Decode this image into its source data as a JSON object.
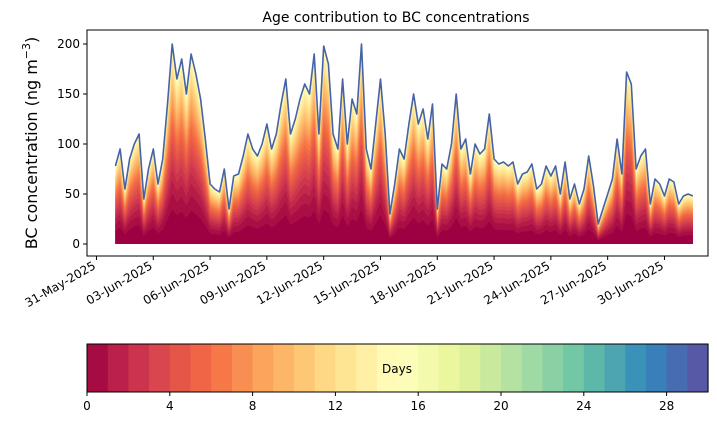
{
  "chart_data": {
    "type": "area",
    "title": "Age contribution to BC concentrations",
    "xlabel": "",
    "ylabel": "BC concentration (ng m",
    "ylabel_sup": "−3",
    "ylabel_close": ")",
    "ylim": [
      -12,
      214
    ],
    "yticks": [
      0,
      50,
      100,
      150,
      200
    ],
    "grid": false,
    "x_start": "2025-06-01",
    "x_end": "2025-07-02",
    "xticks": [
      {
        "date": "2025-05-31",
        "label": "31-May-2025"
      },
      {
        "date": "2025-06-03",
        "label": "03-Jun-2025"
      },
      {
        "date": "2025-06-06",
        "label": "06-Jun-2025"
      },
      {
        "date": "2025-06-09",
        "label": "09-Jun-2025"
      },
      {
        "date": "2025-06-12",
        "label": "12-Jun-2025"
      },
      {
        "date": "2025-06-15",
        "label": "15-Jun-2025"
      },
      {
        "date": "2025-06-18",
        "label": "18-Jun-2025"
      },
      {
        "date": "2025-06-21",
        "label": "21-Jun-2025"
      },
      {
        "date": "2025-06-24",
        "label": "24-Jun-2025"
      },
      {
        "date": "2025-06-27",
        "label": "27-Jun-2025"
      },
      {
        "date": "2025-06-30",
        "label": "30-Jun-2025"
      }
    ],
    "total_series": [
      [
        "2025-06-01T00:00",
        78
      ],
      [
        "2025-06-01T06:00",
        95
      ],
      [
        "2025-06-01T12:00",
        55
      ],
      [
        "2025-06-01T18:00",
        85
      ],
      [
        "2025-06-02T00:00",
        100
      ],
      [
        "2025-06-02T06:00",
        110
      ],
      [
        "2025-06-02T12:00",
        45
      ],
      [
        "2025-06-02T18:00",
        75
      ],
      [
        "2025-06-03T00:00",
        95
      ],
      [
        "2025-06-03T06:00",
        60
      ],
      [
        "2025-06-03T12:00",
        85
      ],
      [
        "2025-06-03T18:00",
        140
      ],
      [
        "2025-06-04T00:00",
        200
      ],
      [
        "2025-06-04T06:00",
        165
      ],
      [
        "2025-06-04T12:00",
        185
      ],
      [
        "2025-06-04T18:00",
        150
      ],
      [
        "2025-06-05T00:00",
        190
      ],
      [
        "2025-06-05T06:00",
        170
      ],
      [
        "2025-06-05T12:00",
        145
      ],
      [
        "2025-06-05T18:00",
        105
      ],
      [
        "2025-06-06T00:00",
        60
      ],
      [
        "2025-06-06T06:00",
        55
      ],
      [
        "2025-06-06T12:00",
        52
      ],
      [
        "2025-06-06T18:00",
        75
      ],
      [
        "2025-06-07T00:00",
        35
      ],
      [
        "2025-06-07T06:00",
        68
      ],
      [
        "2025-06-07T12:00",
        70
      ],
      [
        "2025-06-07T18:00",
        88
      ],
      [
        "2025-06-08T00:00",
        110
      ],
      [
        "2025-06-08T06:00",
        95
      ],
      [
        "2025-06-08T12:00",
        88
      ],
      [
        "2025-06-08T18:00",
        100
      ],
      [
        "2025-06-09T00:00",
        120
      ],
      [
        "2025-06-09T06:00",
        95
      ],
      [
        "2025-06-09T12:00",
        110
      ],
      [
        "2025-06-09T18:00",
        140
      ],
      [
        "2025-06-10T00:00",
        165
      ],
      [
        "2025-06-10T06:00",
        110
      ],
      [
        "2025-06-10T12:00",
        125
      ],
      [
        "2025-06-10T18:00",
        145
      ],
      [
        "2025-06-11T00:00",
        160
      ],
      [
        "2025-06-11T06:00",
        150
      ],
      [
        "2025-06-11T12:00",
        190
      ],
      [
        "2025-06-11T18:00",
        110
      ],
      [
        "2025-06-12T00:00",
        198
      ],
      [
        "2025-06-12T06:00",
        180
      ],
      [
        "2025-06-12T12:00",
        110
      ],
      [
        "2025-06-12T18:00",
        95
      ],
      [
        "2025-06-13T00:00",
        165
      ],
      [
        "2025-06-13T06:00",
        100
      ],
      [
        "2025-06-13T12:00",
        145
      ],
      [
        "2025-06-13T18:00",
        130
      ],
      [
        "2025-06-14T00:00",
        200
      ],
      [
        "2025-06-14T06:00",
        95
      ],
      [
        "2025-06-14T12:00",
        75
      ],
      [
        "2025-06-14T18:00",
        120
      ],
      [
        "2025-06-15T00:00",
        165
      ],
      [
        "2025-06-15T06:00",
        110
      ],
      [
        "2025-06-15T12:00",
        30
      ],
      [
        "2025-06-15T18:00",
        60
      ],
      [
        "2025-06-16T00:00",
        95
      ],
      [
        "2025-06-16T06:00",
        85
      ],
      [
        "2025-06-16T12:00",
        120
      ],
      [
        "2025-06-16T18:00",
        150
      ],
      [
        "2025-06-17T00:00",
        120
      ],
      [
        "2025-06-17T06:00",
        135
      ],
      [
        "2025-06-17T12:00",
        105
      ],
      [
        "2025-06-17T18:00",
        140
      ],
      [
        "2025-06-18T00:00",
        35
      ],
      [
        "2025-06-18T06:00",
        80
      ],
      [
        "2025-06-18T12:00",
        75
      ],
      [
        "2025-06-18T18:00",
        100
      ],
      [
        "2025-06-19T00:00",
        150
      ],
      [
        "2025-06-19T06:00",
        95
      ],
      [
        "2025-06-19T12:00",
        105
      ],
      [
        "2025-06-19T18:00",
        70
      ],
      [
        "2025-06-20T00:00",
        100
      ],
      [
        "2025-06-20T06:00",
        90
      ],
      [
        "2025-06-20T12:00",
        95
      ],
      [
        "2025-06-20T18:00",
        130
      ],
      [
        "2025-06-21T00:00",
        85
      ],
      [
        "2025-06-21T06:00",
        80
      ],
      [
        "2025-06-21T12:00",
        82
      ],
      [
        "2025-06-21T18:00",
        78
      ],
      [
        "2025-06-22T00:00",
        82
      ],
      [
        "2025-06-22T06:00",
        60
      ],
      [
        "2025-06-22T12:00",
        70
      ],
      [
        "2025-06-22T18:00",
        72
      ],
      [
        "2025-06-23T00:00",
        80
      ],
      [
        "2025-06-23T06:00",
        55
      ],
      [
        "2025-06-23T12:00",
        60
      ],
      [
        "2025-06-23T18:00",
        78
      ],
      [
        "2025-06-24T00:00",
        68
      ],
      [
        "2025-06-24T06:00",
        78
      ],
      [
        "2025-06-24T12:00",
        50
      ],
      [
        "2025-06-24T18:00",
        82
      ],
      [
        "2025-06-25T00:00",
        45
      ],
      [
        "2025-06-25T06:00",
        60
      ],
      [
        "2025-06-25T12:00",
        40
      ],
      [
        "2025-06-25T18:00",
        55
      ],
      [
        "2025-06-26T00:00",
        88
      ],
      [
        "2025-06-26T06:00",
        58
      ],
      [
        "2025-06-26T12:00",
        20
      ],
      [
        "2025-06-26T18:00",
        35
      ],
      [
        "2025-06-27T00:00",
        50
      ],
      [
        "2025-06-27T06:00",
        65
      ],
      [
        "2025-06-27T12:00",
        105
      ],
      [
        "2025-06-27T18:00",
        70
      ],
      [
        "2025-06-28T00:00",
        172
      ],
      [
        "2025-06-28T06:00",
        160
      ],
      [
        "2025-06-28T12:00",
        75
      ],
      [
        "2025-06-28T18:00",
        88
      ],
      [
        "2025-06-29T00:00",
        95
      ],
      [
        "2025-06-29T06:00",
        40
      ],
      [
        "2025-06-29T12:00",
        65
      ],
      [
        "2025-06-29T18:00",
        60
      ],
      [
        "2025-06-30T00:00",
        48
      ],
      [
        "2025-06-30T06:00",
        65
      ],
      [
        "2025-06-30T12:00",
        62
      ],
      [
        "2025-06-30T18:00",
        40
      ],
      [
        "2025-07-01T00:00",
        48
      ],
      [
        "2025-07-01T06:00",
        50
      ],
      [
        "2025-07-01T12:00",
        48
      ]
    ],
    "line_color": "#4563a6",
    "colorbar": {
      "label": "Days",
      "range": [
        0,
        30
      ],
      "ticks": [
        0,
        4,
        8,
        12,
        16,
        20,
        24,
        28
      ],
      "n_bins": 30,
      "colormap": "Spectral",
      "colors": [
        "#9e0142",
        "#d53e4f",
        "#f46d43",
        "#fdae61",
        "#fee08b",
        "#ffffbf",
        "#e6f598",
        "#abdda4",
        "#66c2a5",
        "#3288bd",
        "#5e4fa2"
      ]
    }
  }
}
